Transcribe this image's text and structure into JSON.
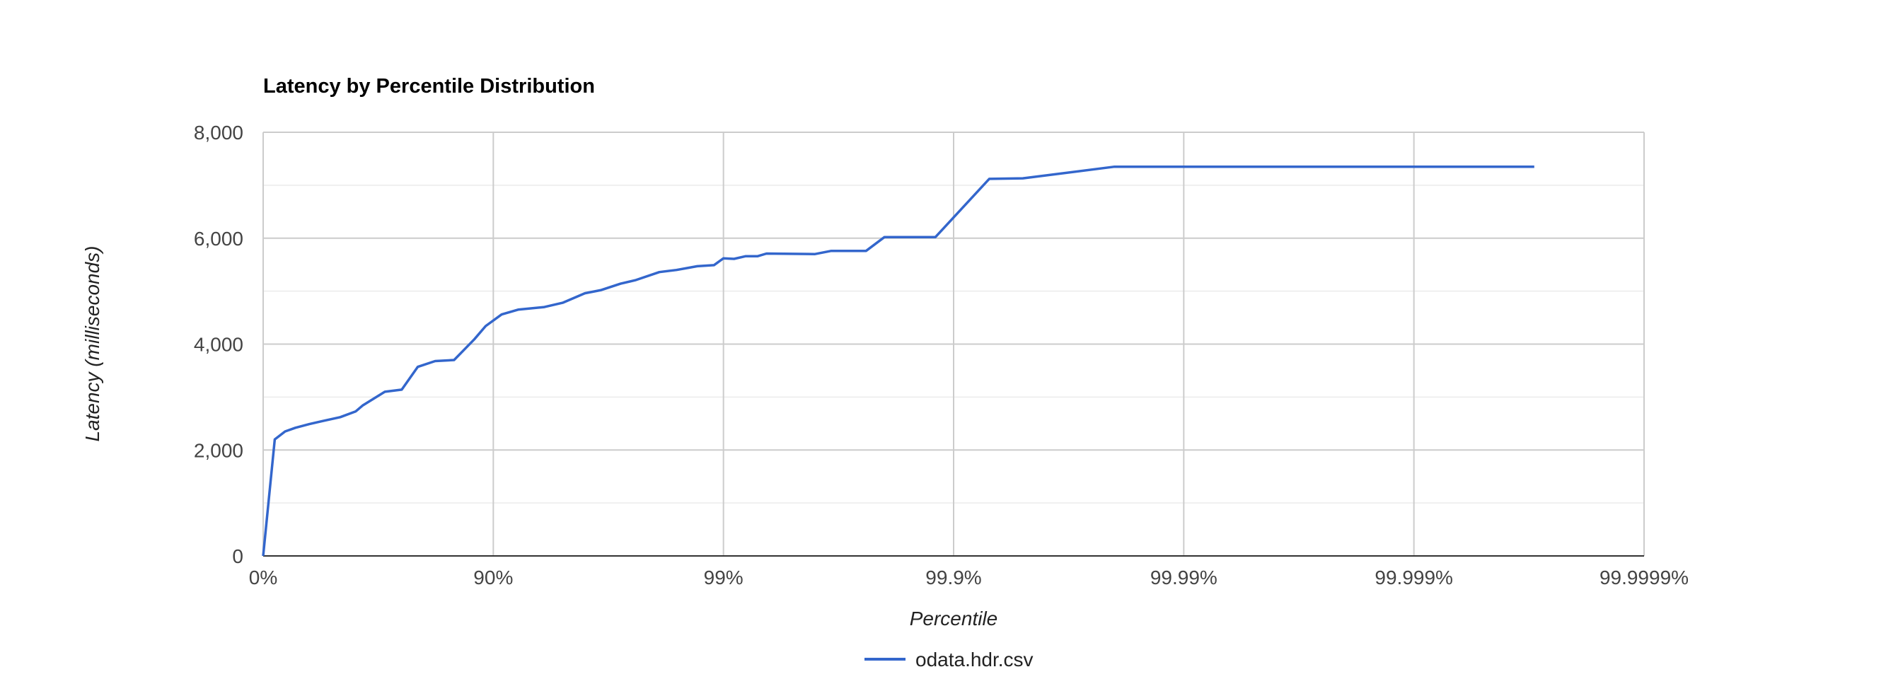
{
  "chart_data": {
    "type": "line",
    "title": "Latency by Percentile Distribution",
    "xlabel": "Percentile",
    "ylabel": "Latency (milliseconds)",
    "x_scale": "inverse-percentile-log",
    "x_tick_labels": [
      "0%",
      "90%",
      "99%",
      "99.9%",
      "99.99%",
      "99.999%",
      "99.9999%"
    ],
    "y_tick_labels": [
      "0",
      "2,000",
      "4,000",
      "6,000",
      "8,000"
    ],
    "ylim": [
      0,
      8000
    ],
    "grid": true,
    "legend_position": "bottom",
    "series": [
      {
        "name": "odata.hdr.csv",
        "color": "#3366cc",
        "x": [
          0,
          10.96,
          19.68,
          27.57,
          37.03,
          45.2,
          53.73,
          60.4,
          63.0,
          70.4,
          75.0,
          78.7,
          82.1,
          85.2,
          87.9,
          89.2,
          90.8,
          92.2,
          94.0,
          95.0,
          96.0,
          96.6,
          97.2,
          97.6,
          98.1,
          98.4,
          98.7,
          98.9,
          99.0,
          99.1,
          99.2,
          99.29,
          99.35,
          99.6,
          99.66,
          99.72,
          99.76,
          99.8,
          99.86,
          99.88,
          99.93,
          99.95,
          99.98,
          99.9997
        ],
        "y": [
          0,
          2200,
          2350,
          2420,
          2490,
          2550,
          2620,
          2730,
          2840,
          3100,
          3140,
          3570,
          3680,
          3700,
          4090,
          4340,
          4560,
          4650,
          4700,
          4780,
          4960,
          5020,
          5140,
          5210,
          5360,
          5400,
          5470,
          5490,
          5620,
          5610,
          5660,
          5660,
          5710,
          5700,
          5760,
          5760,
          5760,
          6020,
          6020,
          6020,
          7120,
          7130,
          7350,
          7350
        ]
      }
    ]
  }
}
